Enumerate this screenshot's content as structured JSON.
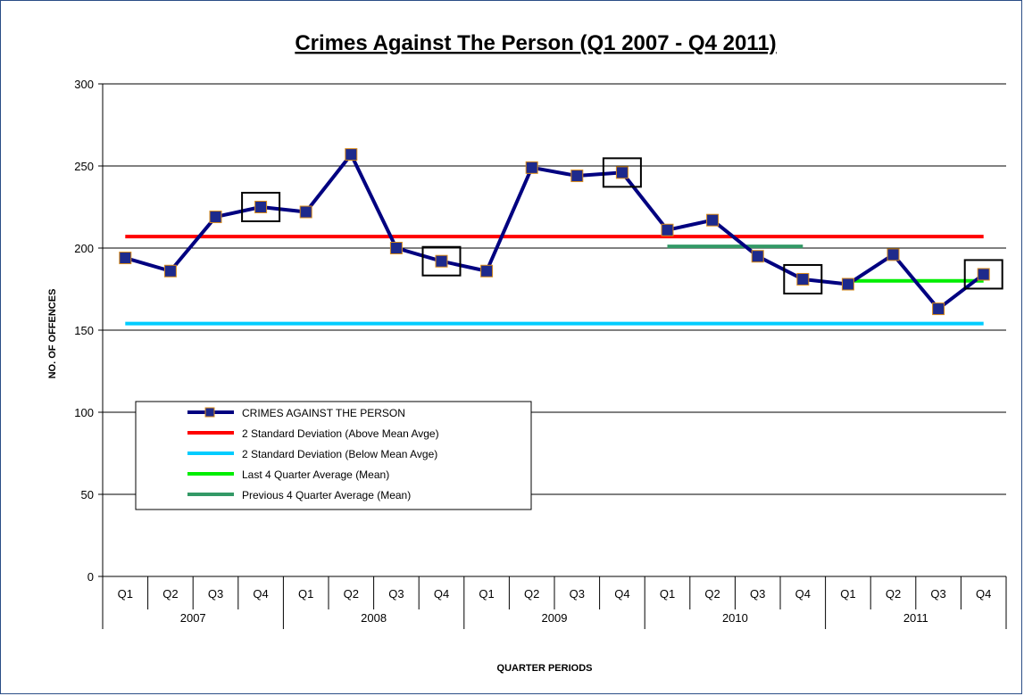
{
  "chart_data": {
    "type": "line",
    "title": "Crimes Against The Person (Q1 2007 - Q4 2011)",
    "xlabel": "QUARTER PERIODS",
    "ylabel": "NO. OF OFFENCES",
    "ylim": [
      0,
      300
    ],
    "yticks": [
      0,
      50,
      100,
      150,
      200,
      250,
      300
    ],
    "grid": true,
    "legend_position": "bottom-left",
    "categories": [
      "Q1",
      "Q2",
      "Q3",
      "Q4",
      "Q1",
      "Q2",
      "Q3",
      "Q4",
      "Q1",
      "Q2",
      "Q3",
      "Q4",
      "Q1",
      "Q2",
      "Q3",
      "Q4",
      "Q1",
      "Q2",
      "Q3",
      "Q4"
    ],
    "years": [
      "2007",
      "2008",
      "2009",
      "2010",
      "2011"
    ],
    "series": [
      {
        "name": "CRIMES AGAINST THE PERSON",
        "color": "#000080",
        "marker_color": "#1e2a8c",
        "values": [
          194,
          186,
          219,
          225,
          222,
          257,
          200,
          192,
          186,
          249,
          244,
          246,
          211,
          217,
          195,
          181,
          178,
          196,
          163,
          184
        ]
      },
      {
        "name": "2 Standard Deviation (Above Mean Avge)",
        "color": "#ff0000",
        "x_range": [
          0,
          19
        ],
        "value": 207
      },
      {
        "name": "2 Standard Deviation (Below Mean Avge)",
        "color": "#00ccff",
        "x_range": [
          0,
          19
        ],
        "value": 154
      },
      {
        "name": "Last 4 Quarter Average (Mean)",
        "color": "#00ee00",
        "x_range": [
          16,
          19
        ],
        "value": 180
      },
      {
        "name": "Previous 4 Quarter Average (Mean)",
        "color": "#339966",
        "x_range": [
          12,
          15
        ],
        "value": 201
      }
    ],
    "highlighted_points": [
      3,
      7,
      11,
      15,
      19
    ]
  }
}
